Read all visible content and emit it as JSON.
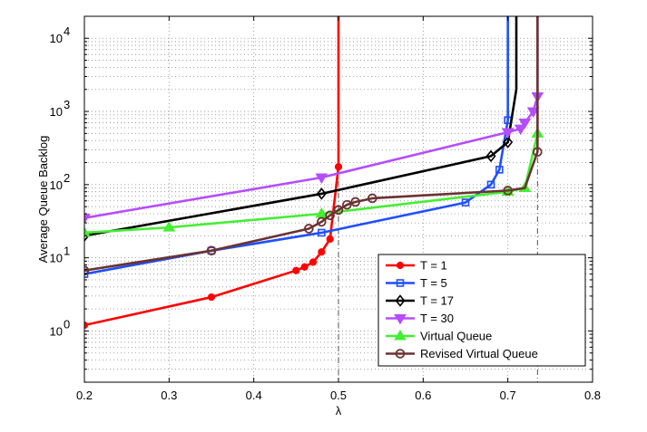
{
  "chart_data": {
    "type": "line",
    "title": "",
    "xlabel": "λ",
    "ylabel": "Average Queue Backlog",
    "xlim": [
      0.2,
      0.8
    ],
    "ylim_exp": [
      -0.7,
      4.3
    ],
    "y_scale": "log",
    "x_ticks": [
      "0.2",
      "0.3",
      "0.4",
      "0.5",
      "0.6",
      "0.7",
      "0.8"
    ],
    "y_ticks": [
      {
        "base": "10",
        "exp": "0"
      },
      {
        "base": "10",
        "exp": "1"
      },
      {
        "base": "10",
        "exp": "2"
      },
      {
        "base": "10",
        "exp": "3"
      },
      {
        "base": "10",
        "exp": "4"
      }
    ],
    "grid": true,
    "legend_position": "bottom-right",
    "reference_lines_x": [
      0.5,
      0.735
    ],
    "series": [
      {
        "name": "T = 1",
        "color": "#ff0000",
        "marker": "circle",
        "x": [
          0.2,
          0.35,
          0.45,
          0.46,
          0.47,
          0.48,
          0.49,
          0.5,
          0.5,
          0.5
        ],
        "y": [
          1.2,
          2.9,
          6.7,
          7.5,
          8.7,
          12,
          18,
          175,
          1000,
          30000
        ],
        "marked": [
          true,
          true,
          true,
          true,
          true,
          true,
          true,
          true,
          false,
          false
        ]
      },
      {
        "name": "T = 5",
        "color": "#1f4fff",
        "marker": "square",
        "x": [
          0.2,
          0.35,
          0.48,
          0.65,
          0.68,
          0.69,
          0.7,
          0.7,
          0.7
        ],
        "y": [
          6,
          12.5,
          22,
          57,
          100,
          160,
          760,
          5000,
          30000
        ],
        "marked": [
          true,
          true,
          true,
          true,
          true,
          true,
          true,
          false,
          false
        ]
      },
      {
        "name": "T = 17",
        "color": "#000000",
        "marker": "diamond",
        "x": [
          0.2,
          0.48,
          0.68,
          0.7,
          0.71,
          0.71
        ],
        "y": [
          20,
          75,
          245,
          380,
          2000,
          30000
        ],
        "marked": [
          true,
          true,
          true,
          true,
          false,
          false
        ]
      },
      {
        "name": "T = 30",
        "color": "#b54dff",
        "marker": "triangle-down",
        "x": [
          0.2,
          0.48,
          0.7,
          0.715,
          0.72,
          0.73,
          0.735,
          0.735,
          0.735
        ],
        "y": [
          35,
          125,
          520,
          580,
          700,
          1000,
          1600,
          5000,
          30000
        ],
        "marked": [
          true,
          true,
          true,
          true,
          true,
          true,
          true,
          false,
          false
        ]
      },
      {
        "name": "Virtual Queue",
        "color": "#44ee33",
        "marker": "triangle-up",
        "x": [
          0.2,
          0.3,
          0.48,
          0.7,
          0.72,
          0.735
        ],
        "y": [
          22,
          26,
          40,
          80,
          90,
          500
        ],
        "marked": [
          true,
          true,
          true,
          true,
          true,
          true
        ]
      },
      {
        "name": "Revised Virtual Queue",
        "color": "#6b3333",
        "marker": "circle-open",
        "x": [
          0.2,
          0.35,
          0.465,
          0.48,
          0.49,
          0.5,
          0.51,
          0.52,
          0.54,
          0.7,
          0.72,
          0.735,
          0.735,
          0.735
        ],
        "y": [
          6.7,
          12.5,
          25,
          31,
          38,
          45,
          53,
          58,
          65,
          83,
          90,
          280,
          2000,
          30000
        ],
        "marked": [
          true,
          true,
          true,
          true,
          true,
          true,
          true,
          true,
          true,
          true,
          false,
          true,
          false,
          false
        ]
      }
    ]
  }
}
